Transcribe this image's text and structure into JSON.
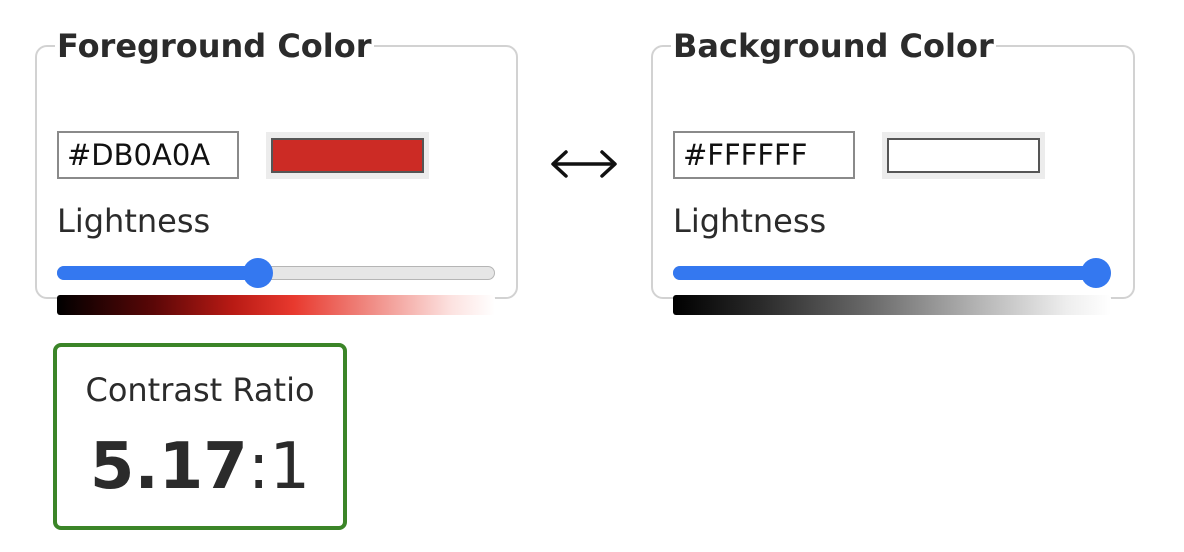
{
  "foreground": {
    "title": "Foreground Color",
    "hex_value": "#DB0A0A",
    "swatch_color": "#cc2b25",
    "lightness_label": "Lightness",
    "lightness_fraction": 0.46
  },
  "background": {
    "title": "Background Color",
    "hex_value": "#FFFFFF",
    "swatch_color": "#ffffff",
    "lightness_label": "Lightness",
    "lightness_fraction": 1.0
  },
  "swap": {
    "icon": "left-right-arrow-icon"
  },
  "contrast": {
    "label": "Contrast Ratio",
    "ratio_value": "5.17",
    "ratio_suffix": ":1",
    "border_color": "#3b8528"
  },
  "colors": {
    "accent": "#3478f0",
    "panel_border": "#d2d2d2"
  }
}
